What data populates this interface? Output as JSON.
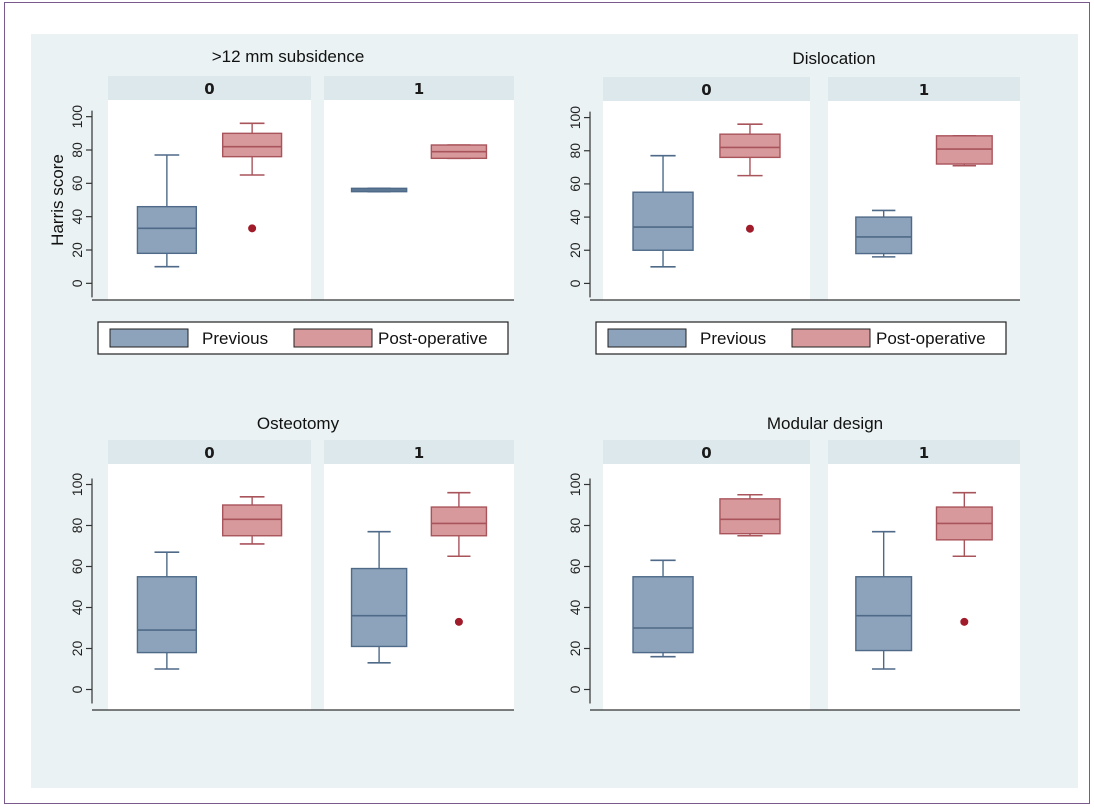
{
  "colors": {
    "background": "#eaf2f3",
    "strip": "#dde8ec",
    "previous_fill": "#8da3bb",
    "previous_stroke": "#4e6a88",
    "post_fill": "#d7999c",
    "post_stroke": "#a9545b",
    "outlier": "#a01c2a"
  },
  "legend": {
    "previous_label": "Previous",
    "post_label": "Post-operative"
  },
  "chart_data": [
    {
      "type": "box",
      "title": ">12 mm subsidence",
      "ylabel": "Harris score",
      "yticks": [
        0,
        20,
        40,
        60,
        80,
        100
      ],
      "ylim": [
        -10,
        110
      ],
      "legend_position": "bottom",
      "facets": [
        {
          "label": "0",
          "boxes": [
            {
              "series": "Previous",
              "whisker_low": 10,
              "q1": 18,
              "median": 33,
              "q3": 46,
              "whisker_high": 77,
              "outliers": []
            },
            {
              "series": "Post-operative",
              "whisker_low": 65,
              "q1": 76,
              "median": 82,
              "q3": 90,
              "whisker_high": 96,
              "outliers": [
                33
              ]
            }
          ]
        },
        {
          "label": "1",
          "boxes": [
            {
              "series": "Previous",
              "whisker_low": 55,
              "q1": 55,
              "median": 56,
              "q3": 57,
              "whisker_high": 57,
              "outliers": []
            },
            {
              "series": "Post-operative",
              "whisker_low": 75,
              "q1": 75,
              "median": 79,
              "q3": 83,
              "whisker_high": 83,
              "outliers": []
            }
          ]
        }
      ]
    },
    {
      "type": "box",
      "title": "Dislocation",
      "ylabel": "",
      "yticks": [
        0,
        20,
        40,
        60,
        80,
        100
      ],
      "ylim": [
        -10,
        110
      ],
      "legend_position": "bottom",
      "facets": [
        {
          "label": "0",
          "boxes": [
            {
              "series": "Previous",
              "whisker_low": 10,
              "q1": 20,
              "median": 34,
              "q3": 55,
              "whisker_high": 77,
              "outliers": []
            },
            {
              "series": "Post-operative",
              "whisker_low": 65,
              "q1": 76,
              "median": 82,
              "q3": 90,
              "whisker_high": 96,
              "outliers": [
                33
              ]
            }
          ]
        },
        {
          "label": "1",
          "boxes": [
            {
              "series": "Previous",
              "whisker_low": 16,
              "q1": 18,
              "median": 28,
              "q3": 40,
              "whisker_high": 44,
              "outliers": []
            },
            {
              "series": "Post-operative",
              "whisker_low": 71,
              "q1": 72,
              "median": 81,
              "q3": 89,
              "whisker_high": 89,
              "outliers": []
            }
          ]
        }
      ]
    },
    {
      "type": "box",
      "title": "Osteotomy",
      "ylabel": "",
      "yticks": [
        0,
        20,
        40,
        60,
        80,
        100
      ],
      "ylim": [
        -10,
        110
      ],
      "facets": [
        {
          "label": "0",
          "boxes": [
            {
              "series": "Previous",
              "whisker_low": 10,
              "q1": 18,
              "median": 29,
              "q3": 55,
              "whisker_high": 67,
              "outliers": []
            },
            {
              "series": "Post-operative",
              "whisker_low": 71,
              "q1": 75,
              "median": 83,
              "q3": 90,
              "whisker_high": 94,
              "outliers": []
            }
          ]
        },
        {
          "label": "1",
          "boxes": [
            {
              "series": "Previous",
              "whisker_low": 13,
              "q1": 21,
              "median": 36,
              "q3": 59,
              "whisker_high": 77,
              "outliers": []
            },
            {
              "series": "Post-operative",
              "whisker_low": 65,
              "q1": 75,
              "median": 81,
              "q3": 89,
              "whisker_high": 96,
              "outliers": [
                33
              ]
            }
          ]
        }
      ]
    },
    {
      "type": "box",
      "title": "Modular design",
      "ylabel": "",
      "yticks": [
        0,
        20,
        40,
        60,
        80,
        100
      ],
      "ylim": [
        -10,
        110
      ],
      "facets": [
        {
          "label": "0",
          "boxes": [
            {
              "series": "Previous",
              "whisker_low": 16,
              "q1": 18,
              "median": 30,
              "q3": 55,
              "whisker_high": 63,
              "outliers": []
            },
            {
              "series": "Post-operative",
              "whisker_low": 75,
              "q1": 76,
              "median": 83,
              "q3": 93,
              "whisker_high": 95,
              "outliers": []
            }
          ]
        },
        {
          "label": "1",
          "boxes": [
            {
              "series": "Previous",
              "whisker_low": 10,
              "q1": 19,
              "median": 36,
              "q3": 55,
              "whisker_high": 77,
              "outliers": []
            },
            {
              "series": "Post-operative",
              "whisker_low": 65,
              "q1": 73,
              "median": 81,
              "q3": 89,
              "whisker_high": 96,
              "outliers": [
                33
              ]
            }
          ]
        }
      ]
    }
  ]
}
